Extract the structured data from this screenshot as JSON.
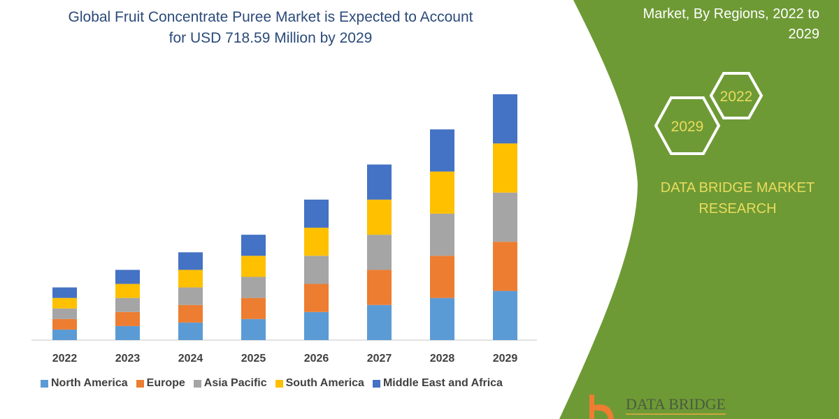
{
  "header": {
    "title_line1": "Global Fruit Concentrate Puree Market is Expected to Account",
    "title_line2": "for USD 718.59 Million by 2029"
  },
  "side_panel": {
    "subtitle_line1": "Market, By Regions, 2022 to",
    "subtitle_line2": "2029",
    "hex_labels": [
      "2022",
      "2029"
    ],
    "brand_line1": "DATA BRIDGE MARKET",
    "brand_line2": "RESEARCH",
    "logo_text": "DATA BRIDGE",
    "panel_color": "#6e9a35",
    "brand_color": "#e9dc5c"
  },
  "chart_data": {
    "type": "bar",
    "stacked": true,
    "title": "Global Fruit Concentrate Puree Market is Expected to Account for USD 718.59 Million by 2029",
    "categories": [
      "2022",
      "2023",
      "2024",
      "2025",
      "2026",
      "2027",
      "2028",
      "2029"
    ],
    "series": [
      {
        "name": "North America",
        "color": "#5b9bd5",
        "values": [
          15,
          20,
          25,
          30,
          40,
          50,
          60,
          70
        ]
      },
      {
        "name": "Europe",
        "color": "#ed7d31",
        "values": [
          15,
          20,
          25,
          30,
          40,
          50,
          60,
          70
        ]
      },
      {
        "name": "Asia Pacific",
        "color": "#a5a5a5",
        "values": [
          15,
          20,
          25,
          30,
          40,
          50,
          60,
          70
        ]
      },
      {
        "name": "South America",
        "color": "#ffc000",
        "values": [
          15,
          20,
          25,
          30,
          40,
          50,
          60,
          70
        ]
      },
      {
        "name": "Middle East and Africa",
        "color": "#4472c4",
        "values": [
          15,
          20,
          25,
          30,
          40,
          50,
          60,
          70
        ]
      }
    ],
    "xlabel": "",
    "ylabel": "",
    "ylim": [
      0,
      350
    ],
    "grid": false,
    "y_axis_shown": false,
    "legend_position": "bottom"
  }
}
